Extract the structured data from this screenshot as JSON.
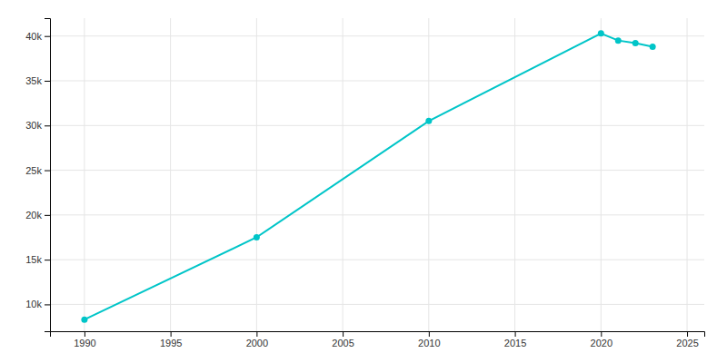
{
  "chart_data": {
    "type": "line",
    "x": [
      1990,
      2000,
      2010,
      2020,
      2021,
      2022,
      2023
    ],
    "values": [
      8300,
      17500,
      30500,
      40290,
      39500,
      39200,
      38800
    ],
    "color": "#00C5C8",
    "marker": "circle",
    "xlim": [
      1988,
      2026
    ],
    "ylim": [
      7000,
      42000
    ],
    "xticks": [
      1990,
      1995,
      2000,
      2005,
      2010,
      2015,
      2020,
      2025
    ],
    "yticks": [
      {
        "value": 10000,
        "label": "10k"
      },
      {
        "value": 15000,
        "label": "15k"
      },
      {
        "value": 20000,
        "label": "20k"
      },
      {
        "value": 25000,
        "label": "25k"
      },
      {
        "value": 30000,
        "label": "30k"
      },
      {
        "value": 35000,
        "label": "35k"
      },
      {
        "value": 40000,
        "label": "40k"
      }
    ],
    "grid": true
  }
}
